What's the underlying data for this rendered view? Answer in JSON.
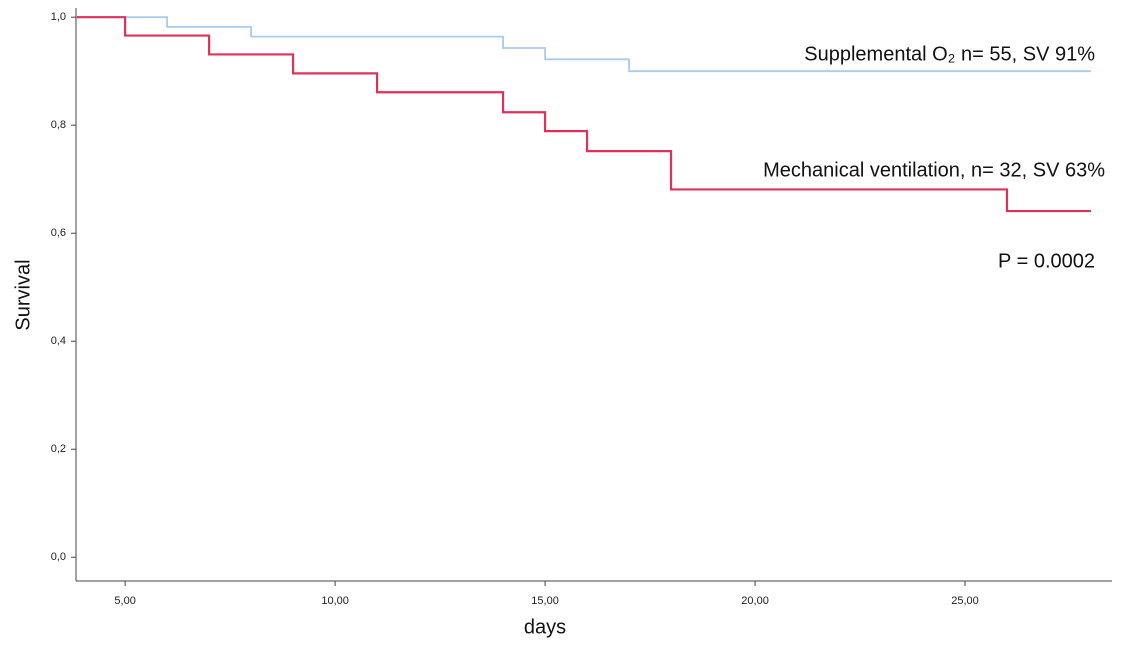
{
  "chart_data": {
    "type": "step",
    "x_label": "days",
    "y_label": "Survival",
    "x": [
      3.85,
      5,
      6,
      7,
      8,
      9,
      11,
      14,
      15,
      16,
      17,
      18,
      26,
      28
    ],
    "series": [
      {
        "name": "Supplemental O₂ n= 55, SV 91%",
        "color": "#a9cbef",
        "values": [
          1,
          1,
          0.982,
          0.982,
          0.964,
          0.964,
          0.964,
          0.943,
          0.922,
          0.922,
          0.9,
          0.9,
          0.9,
          0.9
        ]
      },
      {
        "name": "Mechanical ventilation, n= 32, SV 63%",
        "color": "#e0305a",
        "values": [
          1,
          0.966,
          0.966,
          0.931,
          0.931,
          0.896,
          0.861,
          0.824,
          0.789,
          0.752,
          0.752,
          0.681,
          0.641,
          0.641
        ]
      }
    ],
    "annotation": "P = 0.0002",
    "xlim": [
      3.83,
      28.5
    ],
    "ylim": [
      -0.044,
      1.017
    ],
    "xticks": [
      {
        "value": 5,
        "label": "5,00"
      },
      {
        "value": 10,
        "label": "10,00"
      },
      {
        "value": 15,
        "label": "15,00"
      },
      {
        "value": 20,
        "label": "20,00"
      },
      {
        "value": 25,
        "label": "25,00"
      }
    ],
    "yticks": [
      {
        "value": 0,
        "label": "0,0"
      },
      {
        "value": 0.2,
        "label": "0,2"
      },
      {
        "value": 0.4,
        "label": "0,4"
      },
      {
        "value": 0.6,
        "label": "0,6"
      },
      {
        "value": 0.8,
        "label": "0,8"
      },
      {
        "value": 1,
        "label": "1,0"
      }
    ]
  }
}
